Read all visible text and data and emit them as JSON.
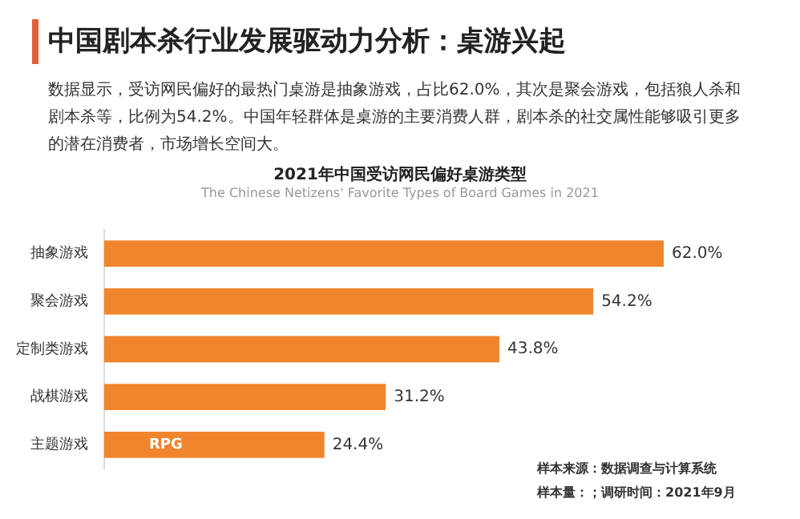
{
  "chart_data": {
    "type": "bar",
    "orientation": "horizontal",
    "title": "中国剧本杀行业发展驱动力分析：桌游兴起",
    "subtitle": "数据显示，受访网民偏好的最热门桌游是抽象游戏，占比62.0%，其次是聚会游戏，包括狼人杀和剧本杀等，比例为54.2%。中国年轻群体是桌游的主要消费人群，剧本杀的社交属性能够吸引更多的潜在消费者，市场增长空间大。",
    "categories": [
      "抽象游戏",
      "聚会游戏",
      "定制类游戏",
      "战棋游戏",
      "主题游戏"
    ],
    "values": [
      62.0,
      54.2,
      43.8,
      31.2,
      24.4
    ],
    "value_labels": [
      "62.0%",
      "54.2%",
      "43.8%",
      "31.2%",
      "24.4%"
    ],
    "color": "#f0852d",
    "tick_labels": "y",
    "grid": false,
    "legend": false,
    "annotations": [
      "2021年中国受访网民偏好桌游类型",
      "The Chinese Netizens' Favorite Types of Board Games in 2021",
      "RPG",
      "样本来源：数据调查与计算系统",
      "样本量：；调研时间：2021年9月"
    ]
  }
}
